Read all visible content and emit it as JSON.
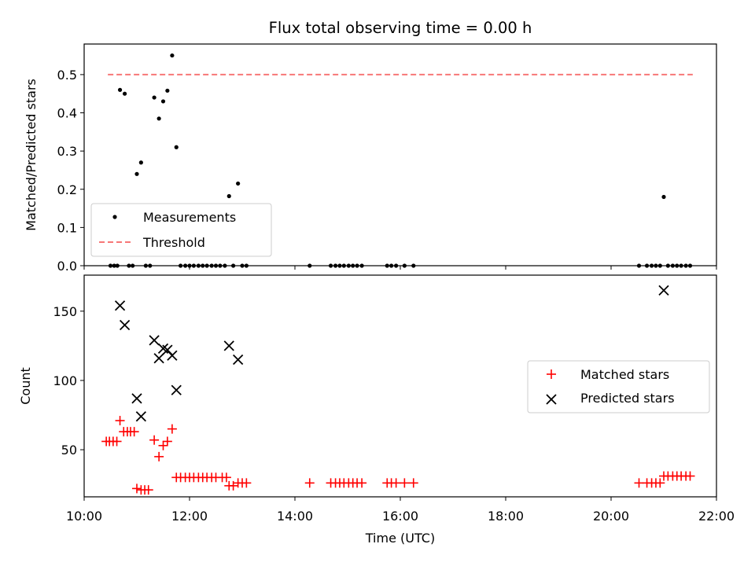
{
  "chart_data": [
    {
      "type": "scatter",
      "title": "Flux total observing time = 0.00 h",
      "xlabel": "",
      "ylabel": "Matched/Predicted stars",
      "xlim": [
        10.0,
        22.0
      ],
      "ylim": [
        0.0,
        0.58
      ],
      "yticks": [
        "0.0",
        "0.1",
        "0.2",
        "0.3",
        "0.4",
        "0.5"
      ],
      "xticks": [
        10,
        12,
        14,
        16,
        18,
        20,
        22
      ],
      "legend": "lower-left",
      "series": [
        {
          "name": "Measurements",
          "color": "#000000",
          "marker": "dot",
          "x": [
            10.5,
            10.57,
            10.63,
            10.68,
            10.77,
            10.85,
            10.92,
            11.0,
            11.08,
            11.17,
            11.25,
            11.33,
            11.42,
            11.5,
            11.58,
            11.67,
            11.75,
            11.83,
            11.92,
            12.0,
            12.08,
            12.17,
            12.25,
            12.33,
            12.42,
            12.5,
            12.58,
            12.67,
            12.75,
            12.83,
            12.92,
            13.0,
            13.08,
            14.28,
            14.68,
            14.77,
            14.85,
            14.93,
            15.02,
            15.1,
            15.18,
            15.27,
            15.75,
            15.83,
            15.92,
            16.08,
            16.25,
            20.53,
            20.68,
            20.77,
            20.85,
            20.93,
            21.0,
            21.08,
            21.17,
            21.25,
            21.33,
            21.42,
            21.5
          ],
          "y": [
            0.0,
            0.0,
            0.0,
            0.46,
            0.45,
            0.0,
            0.0,
            0.24,
            0.27,
            0.0,
            0.0,
            0.44,
            0.385,
            0.43,
            0.458,
            0.55,
            0.31,
            0.0,
            0.0,
            0.0,
            0.0,
            0.0,
            0.0,
            0.0,
            0.0,
            0.0,
            0.0,
            0.0,
            0.182,
            0.0,
            0.215,
            0.0,
            0.0,
            0.0,
            0.0,
            0.0,
            0.0,
            0.0,
            0.0,
            0.0,
            0.0,
            0.0,
            0.0,
            0.0,
            0.0,
            0.0,
            0.0,
            0.0,
            0.0,
            0.0,
            0.0,
            0.0,
            0.18,
            0.0,
            0.0,
            0.0,
            0.0,
            0.0,
            0.0
          ]
        },
        {
          "name": "Threshold",
          "color": "#f77777",
          "style": "dashed",
          "x": [
            10.45,
            21.55
          ],
          "y": [
            0.5,
            0.5
          ]
        }
      ]
    },
    {
      "type": "scatter",
      "title": "",
      "xlabel": "Time (UTC)",
      "ylabel": "Count",
      "xlim": [
        10.0,
        22.0
      ],
      "ylim": [
        16,
        176
      ],
      "yticks": [
        "50",
        "100",
        "150"
      ],
      "xticks": [
        "10:00",
        "12:00",
        "14:00",
        "16:00",
        "18:00",
        "20:00",
        "22:00"
      ],
      "legend": "right",
      "series": [
        {
          "name": "Matched stars",
          "color": "#ff0000",
          "marker": "plus",
          "x": [
            10.42,
            10.48,
            10.55,
            10.62,
            10.68,
            10.75,
            10.82,
            10.88,
            10.95,
            11.0,
            11.08,
            11.15,
            11.22,
            11.33,
            11.42,
            11.5,
            11.58,
            11.67,
            11.75,
            11.83,
            11.92,
            12.0,
            12.08,
            12.17,
            12.25,
            12.33,
            12.42,
            12.5,
            12.62,
            12.7,
            12.75,
            12.83,
            12.92,
            13.0,
            13.08,
            14.28,
            14.68,
            14.77,
            14.85,
            14.93,
            15.02,
            15.1,
            15.18,
            15.27,
            15.75,
            15.83,
            15.92,
            16.08,
            16.25,
            20.53,
            20.68,
            20.77,
            20.85,
            20.93,
            21.0,
            21.08,
            21.17,
            21.25,
            21.33,
            21.42,
            21.5
          ],
          "y": [
            56,
            56,
            56,
            56,
            71,
            63,
            63,
            63,
            63,
            22,
            21,
            21,
            21,
            57,
            45,
            53,
            56,
            65,
            30,
            30,
            30,
            30,
            30,
            30,
            30,
            30,
            30,
            30,
            30,
            30,
            24,
            24,
            26,
            26,
            26,
            26,
            26,
            26,
            26,
            26,
            26,
            26,
            26,
            26,
            26,
            26,
            26,
            26,
            26,
            26,
            26,
            26,
            26,
            26,
            31,
            31,
            31,
            31,
            31,
            31,
            31
          ]
        },
        {
          "name": "Predicted stars",
          "color": "#000000",
          "marker": "x",
          "x": [
            10.68,
            10.77,
            11.0,
            11.08,
            11.33,
            11.42,
            11.5,
            11.58,
            11.67,
            11.75,
            12.75,
            12.92,
            21.0
          ],
          "y": [
            154,
            140,
            87,
            74,
            129,
            116,
            123,
            122,
            118,
            93,
            125,
            115,
            165
          ]
        }
      ]
    }
  ]
}
